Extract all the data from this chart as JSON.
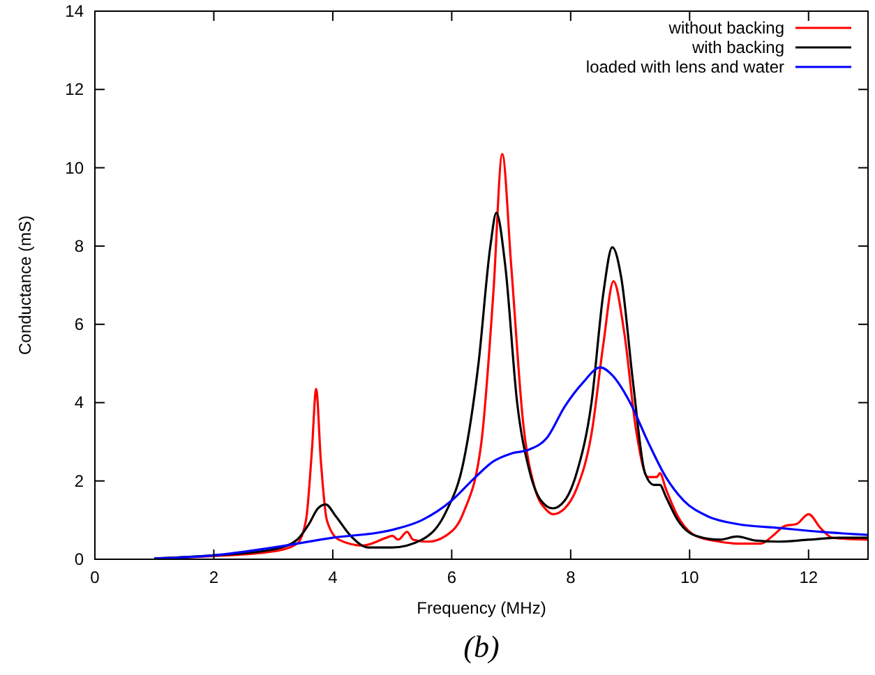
{
  "chart_data": {
    "type": "line",
    "xlabel": "Frequency (MHz)",
    "ylabel": "Conductance (mS)",
    "annotations": [
      "(b)"
    ],
    "xlim": [
      0,
      13
    ],
    "ylim": [
      0,
      14
    ],
    "xticks": [
      0,
      2,
      4,
      6,
      8,
      10,
      12
    ],
    "yticks": [
      0,
      2,
      4,
      6,
      8,
      10,
      12,
      14
    ],
    "grid": false,
    "legend": "top right",
    "marker": "none",
    "line_style": "solid",
    "series": [
      {
        "name": "without backing",
        "color": "#ff0000",
        "x": [
          1,
          2,
          3,
          3.4,
          3.55,
          3.65,
          3.72,
          3.8,
          3.9,
          4.1,
          4.5,
          4.9,
          5,
          5.1,
          5.25,
          5.35,
          5.6,
          5.9,
          6.2,
          6.5,
          6.7,
          6.85,
          7,
          7.2,
          7.4,
          7.6,
          7.7,
          7.9,
          8.1,
          8.35,
          8.55,
          8.72,
          8.9,
          9.1,
          9.3,
          9.45,
          9.5,
          9.6,
          9.8,
          10.1,
          10.5,
          10.8,
          11.2,
          11.4,
          11.6,
          11.8,
          12,
          12.2,
          12.4,
          13
        ],
        "values": [
          0.02,
          0.08,
          0.2,
          0.4,
          1,
          2.8,
          4.35,
          2.5,
          1,
          0.5,
          0.35,
          0.55,
          0.6,
          0.5,
          0.7,
          0.5,
          0.45,
          0.6,
          1.2,
          3,
          6.8,
          10.35,
          7.5,
          3.5,
          1.8,
          1.25,
          1.15,
          1.3,
          1.8,
          3.2,
          5.5,
          7.1,
          5.8,
          3.3,
          2.1,
          2.1,
          2.2,
          1.8,
          1.1,
          0.6,
          0.45,
          0.4,
          0.4,
          0.6,
          0.85,
          0.9,
          1.15,
          0.8,
          0.55,
          0.5
        ]
      },
      {
        "name": "with backing",
        "color": "#000000",
        "x": [
          1,
          2,
          3,
          3.4,
          3.6,
          3.75,
          3.88,
          4.05,
          4.3,
          4.6,
          5,
          5.5,
          5.9,
          6.2,
          6.45,
          6.65,
          6.75,
          6.9,
          7.1,
          7.3,
          7.5,
          7.7,
          7.9,
          8.1,
          8.35,
          8.55,
          8.7,
          8.85,
          9.05,
          9.25,
          9.4,
          9.5,
          9.6,
          9.8,
          10.1,
          10.5,
          10.8,
          11.1,
          11.5,
          12,
          12.5,
          13
        ],
        "values": [
          0.02,
          0.1,
          0.25,
          0.5,
          0.9,
          1.3,
          1.4,
          1.1,
          0.6,
          0.3,
          0.3,
          0.5,
          1.2,
          2.5,
          5,
          8,
          8.85,
          7.5,
          4,
          2.3,
          1.5,
          1.3,
          1.5,
          2.2,
          4,
          6.8,
          7.97,
          7.2,
          4.5,
          2.2,
          1.9,
          1.9,
          1.6,
          1,
          0.6,
          0.5,
          0.58,
          0.48,
          0.45,
          0.5,
          0.55,
          0.55
        ]
      },
      {
        "name": "loaded with lens and water",
        "color": "#0000ff",
        "x": [
          1,
          2,
          3,
          4,
          5,
          5.5,
          6,
          6.4,
          6.7,
          7,
          7.3,
          7.6,
          7.9,
          8.2,
          8.5,
          8.7,
          9,
          9.3,
          9.6,
          9.9,
          10.3,
          10.8,
          11.5,
          12.2,
          13
        ],
        "values": [
          0.02,
          0.1,
          0.3,
          0.55,
          0.75,
          1,
          1.5,
          2.1,
          2.5,
          2.7,
          2.8,
          3.1,
          3.9,
          4.5,
          4.9,
          4.7,
          4,
          3,
          2.1,
          1.5,
          1.1,
          0.9,
          0.8,
          0.7,
          0.62
        ]
      }
    ]
  }
}
